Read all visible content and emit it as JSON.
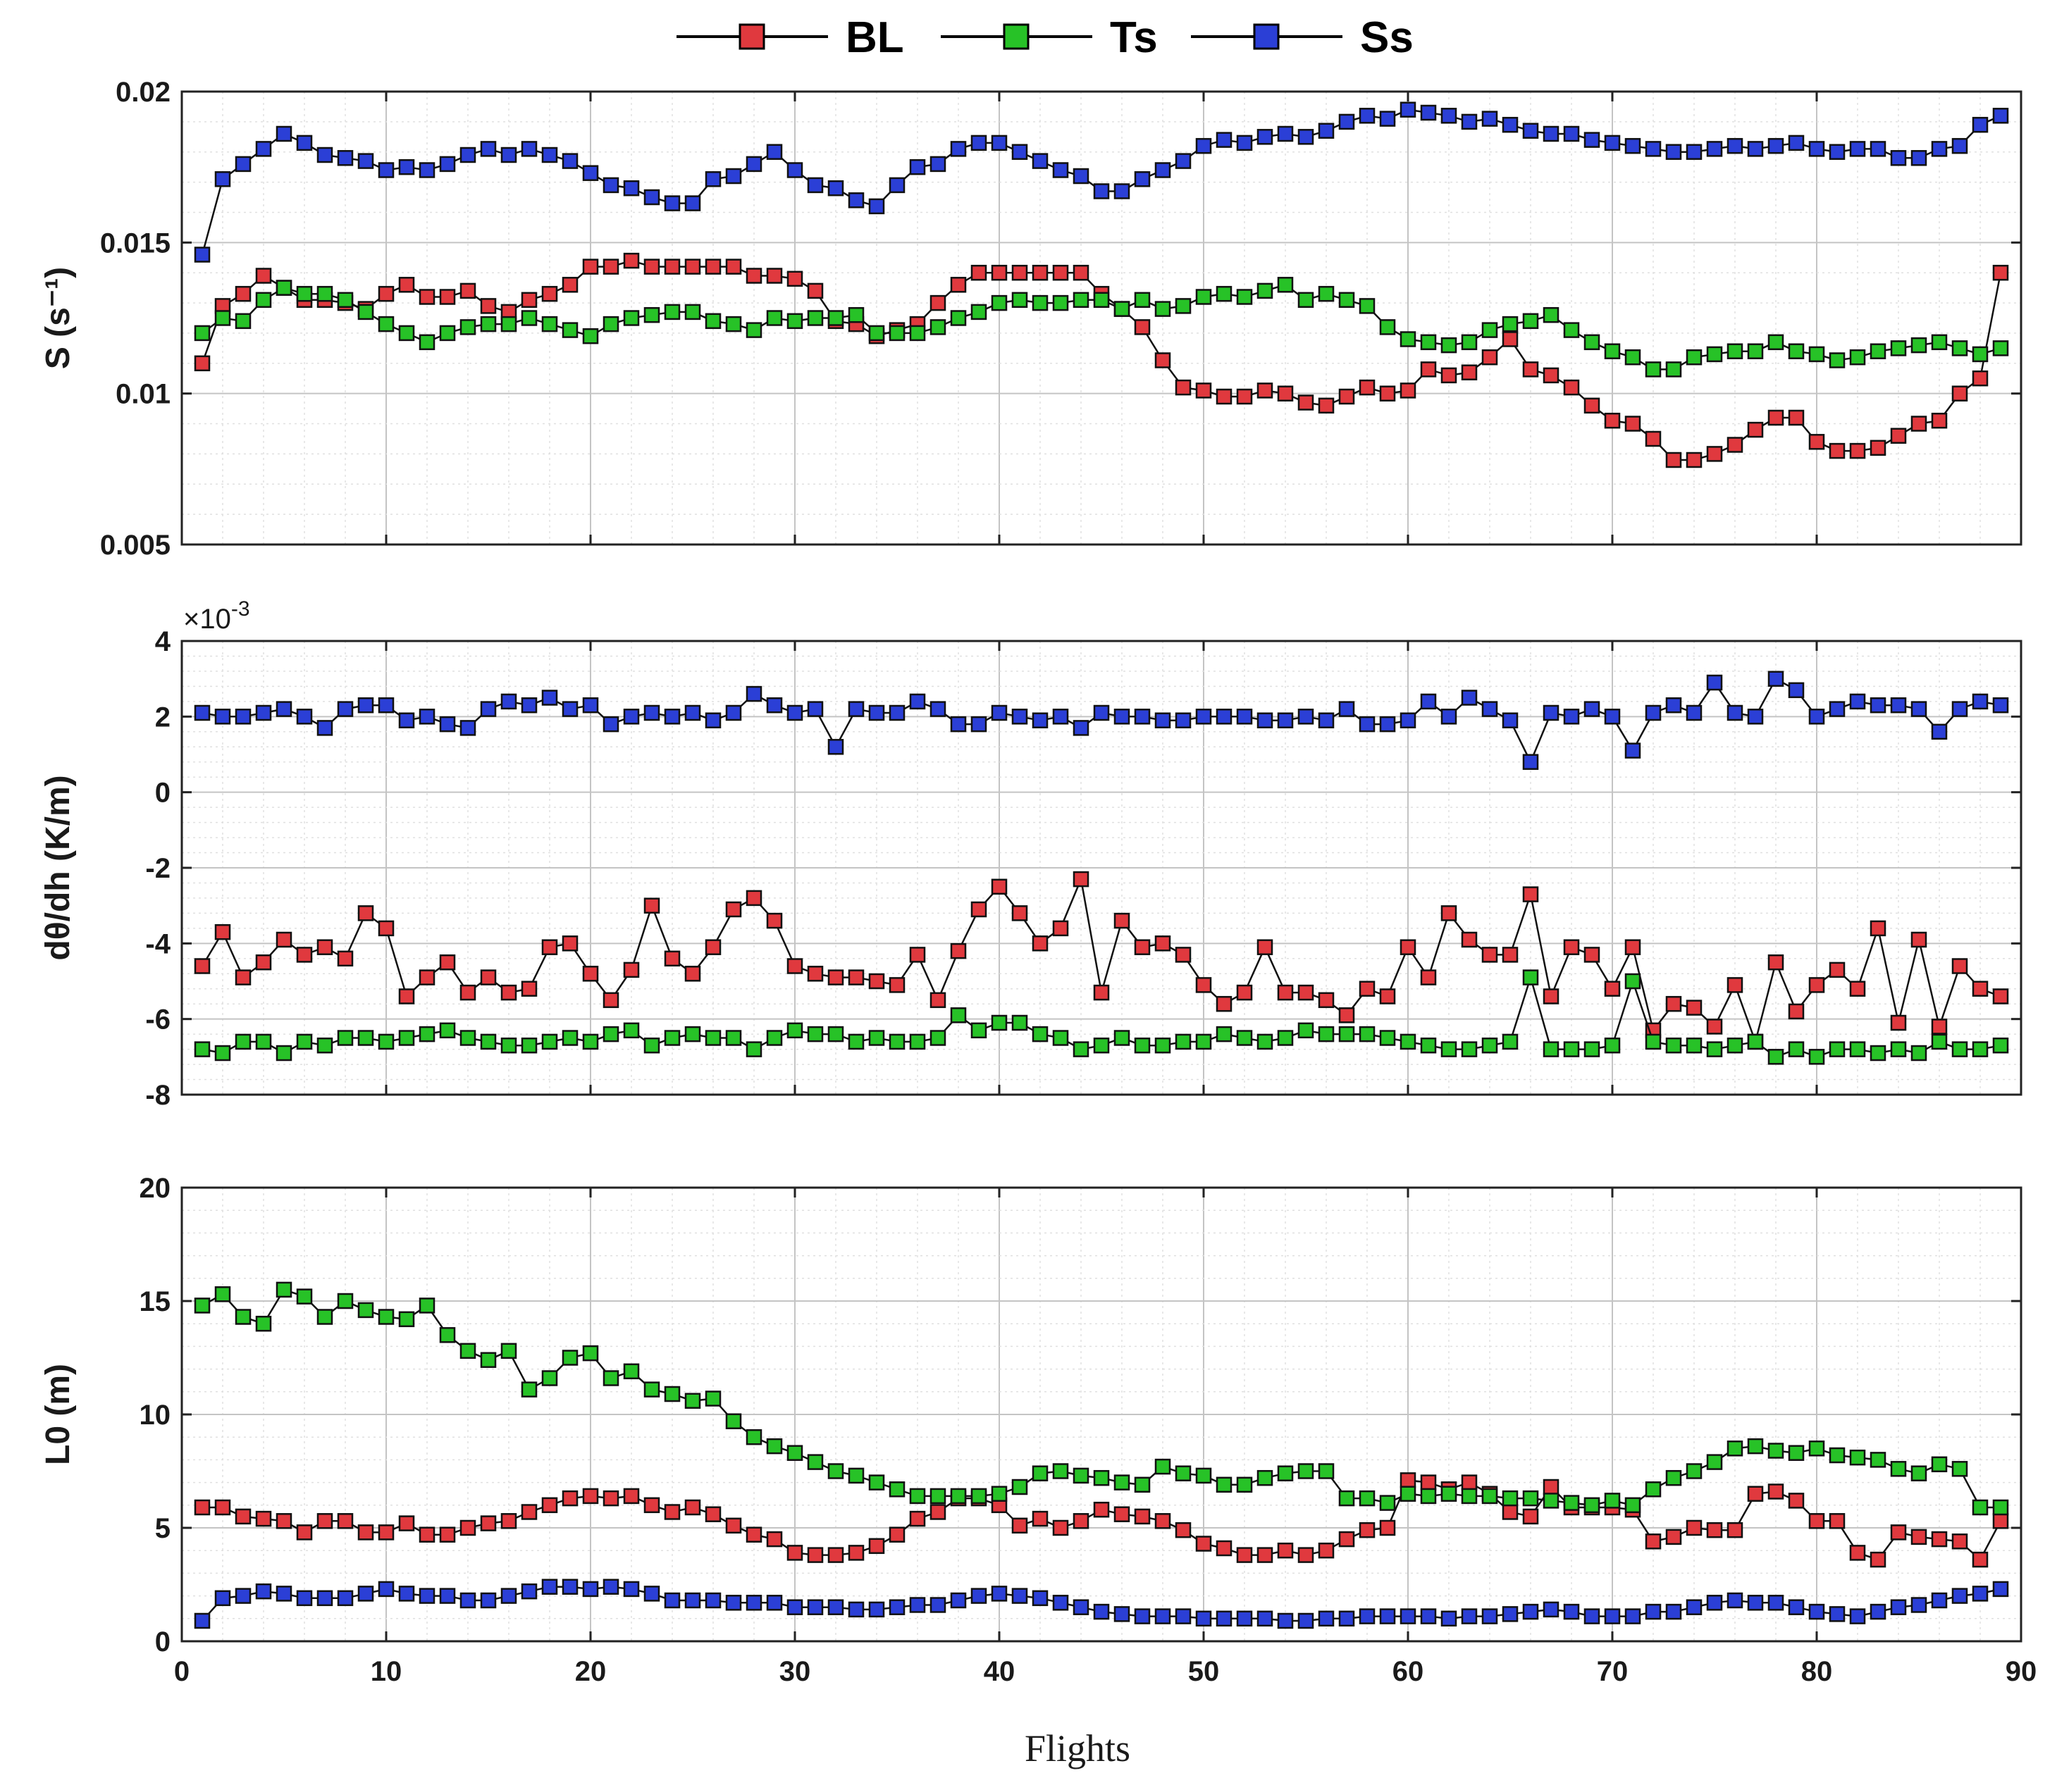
{
  "chart_data": {
    "type": "line",
    "legend": {
      "position": "top-center",
      "entries": [
        {
          "name": "BL",
          "color": "#e0393e"
        },
        {
          "name": "Ts",
          "color": "#27c227"
        },
        {
          "name": "Ss",
          "color": "#2b3fd6"
        }
      ]
    },
    "xlabel": "Flights",
    "xlim": [
      0,
      90
    ],
    "xticks": [
      0,
      10,
      20,
      30,
      40,
      50,
      60,
      70,
      80,
      90
    ],
    "x": [
      1,
      2,
      3,
      4,
      5,
      6,
      7,
      8,
      9,
      10,
      11,
      12,
      13,
      14,
      15,
      16,
      17,
      18,
      19,
      20,
      21,
      22,
      23,
      24,
      25,
      26,
      27,
      28,
      29,
      30,
      31,
      32,
      33,
      34,
      35,
      36,
      37,
      38,
      39,
      40,
      41,
      42,
      43,
      44,
      45,
      46,
      47,
      48,
      49,
      50,
      51,
      52,
      53,
      54,
      55,
      56,
      57,
      58,
      59,
      60,
      61,
      62,
      63,
      64,
      65,
      66,
      67,
      68,
      69,
      70,
      71,
      72,
      73,
      74,
      75,
      76,
      77,
      78,
      79,
      80,
      81,
      82,
      83,
      84,
      85,
      86,
      87,
      88,
      89
    ],
    "grid": true,
    "panels": [
      {
        "ylabel": "S (s⁻¹)",
        "ylim": [
          0.005,
          0.02
        ],
        "yticks": [
          "0.005",
          "0.01",
          "0.015",
          "0.02"
        ],
        "series": [
          {
            "name": "BL",
            "values": [
              0.011,
              0.0129,
              0.0133,
              0.0139,
              0.0135,
              0.0131,
              0.0131,
              0.013,
              0.0128,
              0.0133,
              0.0136,
              0.0132,
              0.0132,
              0.0134,
              0.0129,
              0.0127,
              0.0131,
              0.0133,
              0.0136,
              0.0142,
              0.0142,
              0.0144,
              0.0142,
              0.0142,
              0.0142,
              0.0142,
              0.0142,
              0.0139,
              0.0139,
              0.0138,
              0.0134,
              0.0124,
              0.0123,
              0.0119,
              0.0121,
              0.0123,
              0.013,
              0.0136,
              0.014,
              0.014,
              0.014,
              0.014,
              0.014,
              0.014,
              0.0133,
              0.0128,
              0.0122,
              0.0111,
              0.0102,
              0.0101,
              0.0099,
              0.0099,
              0.0101,
              0.01,
              0.0097,
              0.0096,
              0.0099,
              0.0102,
              0.01,
              0.0101,
              0.0108,
              0.0106,
              0.0107,
              0.0112,
              0.0118,
              0.0108,
              0.0106,
              0.0102,
              0.0096,
              0.0091,
              0.009,
              0.0085,
              0.0078,
              0.0078,
              0.008,
              0.0083,
              0.0088,
              0.0092,
              0.0092,
              0.0084,
              0.0081,
              0.0081,
              0.0082,
              0.0086,
              0.009,
              0.0091,
              0.01,
              0.0105,
              0.014
            ]
          },
          {
            "name": "Ts",
            "values": [
              0.012,
              0.0125,
              0.0124,
              0.0131,
              0.0135,
              0.0133,
              0.0133,
              0.0131,
              0.0127,
              0.0123,
              0.012,
              0.0117,
              0.012,
              0.0122,
              0.0123,
              0.0123,
              0.0125,
              0.0123,
              0.0121,
              0.0119,
              0.0123,
              0.0125,
              0.0126,
              0.0127,
              0.0127,
              0.0124,
              0.0123,
              0.0121,
              0.0125,
              0.0124,
              0.0125,
              0.0125,
              0.0126,
              0.012,
              0.012,
              0.012,
              0.0122,
              0.0125,
              0.0127,
              0.013,
              0.0131,
              0.013,
              0.013,
              0.0131,
              0.0131,
              0.0128,
              0.0131,
              0.0128,
              0.0129,
              0.0132,
              0.0133,
              0.0132,
              0.0134,
              0.0136,
              0.0131,
              0.0133,
              0.0131,
              0.0129,
              0.0122,
              0.0118,
              0.0117,
              0.0116,
              0.0117,
              0.0121,
              0.0123,
              0.0124,
              0.0126,
              0.0121,
              0.0117,
              0.0114,
              0.0112,
              0.0108,
              0.0108,
              0.0112,
              0.0113,
              0.0114,
              0.0114,
              0.0117,
              0.0114,
              0.0113,
              0.0111,
              0.0112,
              0.0114,
              0.0115,
              0.0116,
              0.0117,
              0.0115,
              0.0113,
              0.0115
            ]
          },
          {
            "name": "Ss",
            "values": [
              0.0146,
              0.0171,
              0.0176,
              0.0181,
              0.0186,
              0.0183,
              0.0179,
              0.0178,
              0.0177,
              0.0174,
              0.0175,
              0.0174,
              0.0176,
              0.0179,
              0.0181,
              0.0179,
              0.0181,
              0.0179,
              0.0177,
              0.0173,
              0.0169,
              0.0168,
              0.0165,
              0.0163,
              0.0163,
              0.0171,
              0.0172,
              0.0176,
              0.018,
              0.0174,
              0.0169,
              0.0168,
              0.0164,
              0.0162,
              0.0169,
              0.0175,
              0.0176,
              0.0181,
              0.0183,
              0.0183,
              0.018,
              0.0177,
              0.0174,
              0.0172,
              0.0167,
              0.0167,
              0.0171,
              0.0174,
              0.0177,
              0.0182,
              0.0184,
              0.0183,
              0.0185,
              0.0186,
              0.0185,
              0.0187,
              0.019,
              0.0192,
              0.0191,
              0.0194,
              0.0193,
              0.0192,
              0.019,
              0.0191,
              0.0189,
              0.0187,
              0.0186,
              0.0186,
              0.0184,
              0.0183,
              0.0182,
              0.0181,
              0.018,
              0.018,
              0.0181,
              0.0182,
              0.0181,
              0.0182,
              0.0183,
              0.0181,
              0.018,
              0.0181,
              0.0181,
              0.0178,
              0.0178,
              0.0181,
              0.0182,
              0.0189,
              0.0192
            ]
          }
        ]
      },
      {
        "ylabel": "dθ/dh (K/m)",
        "exponent": "×10",
        "exponent_power": "-3",
        "ylim": [
          -8,
          4
        ],
        "yticks": [
          "-8",
          "-6",
          "-4",
          "-2",
          "0",
          "2",
          "4"
        ],
        "series": [
          {
            "name": "BL",
            "values": [
              -4.6,
              -3.7,
              -4.9,
              -4.5,
              -3.9,
              -4.3,
              -4.1,
              -4.4,
              -3.2,
              -3.6,
              -5.4,
              -4.9,
              -4.5,
              -5.3,
              -4.9,
              -5.3,
              -5.2,
              -4.1,
              -4,
              -4.8,
              -5.5,
              -4.7,
              -3,
              -4.4,
              -4.8,
              -4.1,
              -3.1,
              -2.8,
              -3.4,
              -4.6,
              -4.8,
              -4.9,
              -4.9,
              -5,
              -5.1,
              -4.3,
              -5.5,
              -4.2,
              -3.1,
              -2.5,
              -3.2,
              -4,
              -3.6,
              -2.3,
              -5.3,
              -3.4,
              -4.1,
              -4,
              -4.3,
              -5.1,
              -5.6,
              -5.3,
              -4.1,
              -5.3,
              -5.3,
              -5.5,
              -5.9,
              -5.2,
              -5.4,
              -4.1,
              -4.9,
              -3.2,
              -3.9,
              -4.3,
              -4.3,
              -2.7,
              -5.4,
              -4.1,
              -4.3,
              -5.2,
              -4.1,
              -6.3,
              -5.6,
              -5.7,
              -6.2,
              -5.1,
              -6.6,
              -4.5,
              -5.8,
              -5.1,
              -4.7,
              -5.2,
              -3.6,
              -6.1,
              -3.9,
              -6.2,
              -4.6,
              -5.2,
              -5.4
            ]
          },
          {
            "name": "Ts",
            "values": [
              -6.8,
              -6.9,
              -6.6,
              -6.6,
              -6.9,
              -6.6,
              -6.7,
              -6.5,
              -6.5,
              -6.6,
              -6.5,
              -6.4,
              -6.3,
              -6.5,
              -6.6,
              -6.7,
              -6.7,
              -6.6,
              -6.5,
              -6.6,
              -6.4,
              -6.3,
              -6.7,
              -6.5,
              -6.4,
              -6.5,
              -6.5,
              -6.8,
              -6.5,
              -6.3,
              -6.4,
              -6.4,
              -6.6,
              -6.5,
              -6.6,
              -6.6,
              -6.5,
              -5.9,
              -6.3,
              -6.1,
              -6.1,
              -6.4,
              -6.5,
              -6.8,
              -6.7,
              -6.5,
              -6.7,
              -6.7,
              -6.6,
              -6.6,
              -6.4,
              -6.5,
              -6.6,
              -6.5,
              -6.3,
              -6.4,
              -6.4,
              -6.4,
              -6.5,
              -6.6,
              -6.7,
              -6.8,
              -6.8,
              -6.7,
              -6.6,
              -4.9,
              -6.8,
              -6.8,
              -6.8,
              -6.7,
              -5,
              -6.6,
              -6.7,
              -6.7,
              -6.8,
              -6.7,
              -6.6,
              -7,
              -6.8,
              -7,
              -6.8,
              -6.8,
              -6.9,
              -6.8,
              -6.9,
              -6.6,
              -6.8,
              -6.8,
              -6.7
            ]
          },
          {
            "name": "Ss",
            "values": [
              2.1,
              2,
              2,
              2.1,
              2.2,
              2,
              1.7,
              2.2,
              2.3,
              2.3,
              1.9,
              2,
              1.8,
              1.7,
              2.2,
              2.4,
              2.3,
              2.5,
              2.2,
              2.3,
              1.8,
              2,
              2.1,
              2,
              2.1,
              1.9,
              2.1,
              2.6,
              2.3,
              2.1,
              2.2,
              1.2,
              2.2,
              2.1,
              2.1,
              2.4,
              2.2,
              1.8,
              1.8,
              2.1,
              2,
              1.9,
              2,
              1.7,
              2.1,
              2,
              2,
              1.9,
              1.9,
              2,
              2,
              2,
              1.9,
              1.9,
              2,
              1.9,
              2.2,
              1.8,
              1.8,
              1.9,
              2.4,
              2,
              2.5,
              2.2,
              1.9,
              0.8,
              2.1,
              2,
              2.2,
              2,
              1.1,
              2.1,
              2.3,
              2.1,
              2.9,
              2.1,
              2,
              3,
              2.7,
              2,
              2.2,
              2.4,
              2.3,
              2.3,
              2.2,
              1.6,
              2.2,
              2.4,
              2.3
            ]
          }
        ]
      },
      {
        "ylabel": "L0 (m)",
        "ylim": [
          0,
          20
        ],
        "yticks": [
          "0",
          "5",
          "10",
          "15",
          "20"
        ],
        "series": [
          {
            "name": "BL",
            "values": [
              5.9,
              5.9,
              5.5,
              5.4,
              5.3,
              4.8,
              5.3,
              5.3,
              4.8,
              4.8,
              5.2,
              4.7,
              4.7,
              5,
              5.2,
              5.3,
              5.7,
              6,
              6.3,
              6.4,
              6.3,
              6.4,
              6,
              5.7,
              5.9,
              5.6,
              5.1,
              4.7,
              4.5,
              3.9,
              3.8,
              3.8,
              3.9,
              4.2,
              4.7,
              5.4,
              5.7,
              6.3,
              6.3,
              6,
              5.1,
              5.4,
              5,
              5.3,
              5.8,
              5.6,
              5.5,
              5.3,
              4.9,
              4.3,
              4.1,
              3.8,
              3.8,
              4,
              3.8,
              4,
              4.5,
              4.9,
              5,
              7.1,
              7,
              6.7,
              7,
              6.5,
              5.7,
              5.5,
              6.8,
              5.9,
              5.9,
              5.9,
              5.8,
              4.4,
              4.6,
              5,
              4.9,
              4.9,
              6.5,
              6.6,
              6.2,
              5.3,
              5.3,
              3.9,
              3.6,
              4.8,
              4.6,
              4.5,
              4.4,
              3.6,
              5.3
            ]
          },
          {
            "name": "Ts",
            "values": [
              14.8,
              15.3,
              14.3,
              14,
              15.5,
              15.2,
              14.3,
              15,
              14.6,
              14.3,
              14.2,
              14.8,
              13.5,
              12.8,
              12.4,
              12.8,
              11.1,
              11.6,
              12.5,
              12.7,
              11.6,
              11.9,
              11.1,
              10.9,
              10.6,
              10.7,
              9.7,
              9,
              8.6,
              8.3,
              7.9,
              7.5,
              7.3,
              7,
              6.7,
              6.4,
              6.4,
              6.4,
              6.4,
              6.5,
              6.8,
              7.4,
              7.5,
              7.3,
              7.2,
              7,
              6.9,
              7.7,
              7.4,
              7.3,
              6.9,
              6.9,
              7.2,
              7.4,
              7.5,
              7.5,
              6.3,
              6.3,
              6.1,
              6.5,
              6.4,
              6.5,
              6.4,
              6.4,
              6.3,
              6.3,
              6.2,
              6.1,
              6,
              6.2,
              6,
              6.7,
              7.2,
              7.5,
              7.9,
              8.5,
              8.6,
              8.4,
              8.3,
              8.5,
              8.2,
              8.1,
              8,
              7.6,
              7.4,
              7.8,
              7.6,
              5.9,
              5.9
            ]
          },
          {
            "name": "Ss",
            "values": [
              0.9,
              1.9,
              2,
              2.2,
              2.1,
              1.9,
              1.9,
              1.9,
              2.1,
              2.3,
              2.1,
              2,
              2,
              1.8,
              1.8,
              2,
              2.2,
              2.4,
              2.4,
              2.3,
              2.4,
              2.3,
              2.1,
              1.8,
              1.8,
              1.8,
              1.7,
              1.7,
              1.7,
              1.5,
              1.5,
              1.5,
              1.4,
              1.4,
              1.5,
              1.6,
              1.6,
              1.8,
              2,
              2.1,
              2,
              1.9,
              1.7,
              1.5,
              1.3,
              1.2,
              1.1,
              1.1,
              1.1,
              1,
              1,
              1,
              1,
              0.9,
              0.9,
              1,
              1,
              1.1,
              1.1,
              1.1,
              1.1,
              1,
              1.1,
              1.1,
              1.2,
              1.3,
              1.4,
              1.3,
              1.1,
              1.1,
              1.1,
              1.3,
              1.3,
              1.5,
              1.7,
              1.8,
              1.7,
              1.7,
              1.5,
              1.3,
              1.2,
              1.1,
              1.3,
              1.5,
              1.6,
              1.8,
              2,
              2.1,
              2.3
            ]
          }
        ]
      }
    ]
  }
}
